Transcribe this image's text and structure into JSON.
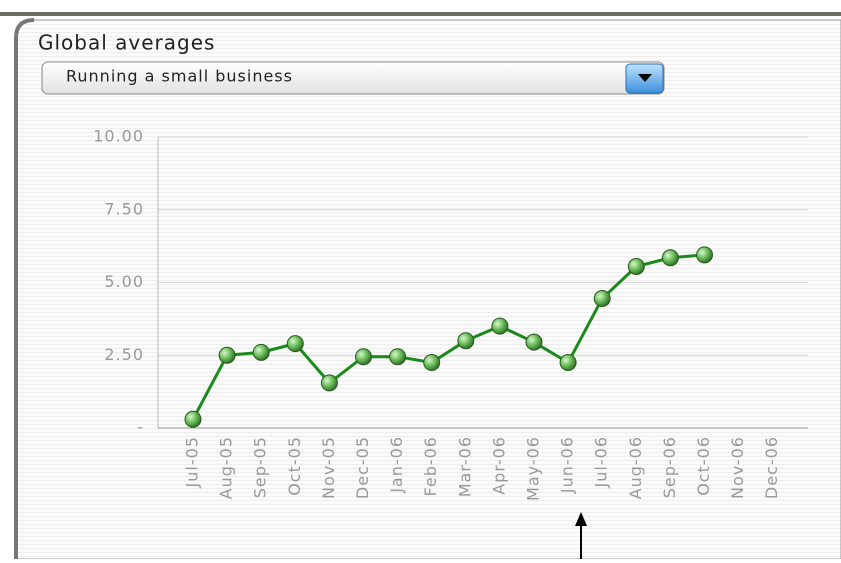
{
  "header": {
    "title": "Global averages"
  },
  "dropdown": {
    "selected": "Running a small business"
  },
  "chart_data": {
    "type": "line",
    "categories": [
      "Jul-05",
      "Aug-05",
      "Sep-05",
      "Oct-05",
      "Nov-05",
      "Dec-05",
      "Jan-06",
      "Feb-06",
      "Mar-06",
      "Apr-06",
      "May-06",
      "Jun-06",
      "Jul-06",
      "Aug-06",
      "Sep-06",
      "Oct-06",
      "Nov-06",
      "Dec-06"
    ],
    "series": [
      {
        "name": "Running a small business",
        "color": "#1a8a1a",
        "values": [
          0.3,
          2.5,
          2.6,
          2.9,
          1.55,
          2.45,
          2.45,
          2.25,
          3.0,
          3.5,
          2.95,
          2.25,
          4.45,
          5.55,
          5.85,
          5.95,
          null,
          null
        ]
      }
    ],
    "ylim": [
      0,
      10
    ],
    "yticks": [
      {
        "value": 0,
        "label": "-"
      },
      {
        "value": 2.5,
        "label": "2.50"
      },
      {
        "value": 5,
        "label": "5.00"
      },
      {
        "value": 7.5,
        "label": "7.50"
      },
      {
        "value": 10,
        "label": "10.00"
      }
    ],
    "grid": true
  }
}
